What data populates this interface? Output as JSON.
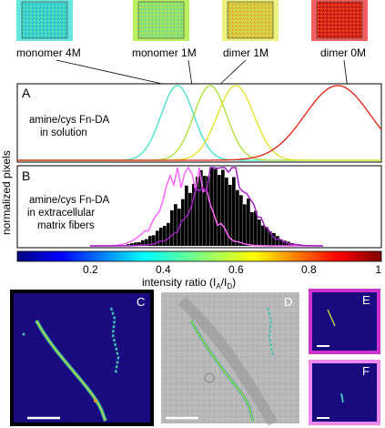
{
  "thumbnails": [
    {
      "label": "monomer 4M",
      "border": "#66e8e0",
      "fill": "#3dd6c8"
    },
    {
      "label": "monomer 1M",
      "border": "#b8f060",
      "fill": "#7fdc6a"
    },
    {
      "label": "dimer 1M",
      "border": "#eef080",
      "fill": "#d9d23a"
    },
    {
      "label": "dimer 0M",
      "border": "#f06060",
      "fill": "#d8201a"
    }
  ],
  "panels": {
    "A": {
      "letter": "A",
      "text_lines": [
        "amine/cys Fn-DA",
        "in solution"
      ]
    },
    "B": {
      "letter": "B",
      "text_lines": [
        "amine/cys Fn-DA",
        "in extracellular",
        "matrix fibers"
      ]
    },
    "C": {
      "letter": "C"
    },
    "D": {
      "letter": "D"
    },
    "E": {
      "letter": "E"
    },
    "F": {
      "letter": "F"
    }
  },
  "ylabel": "normalized pixels",
  "colorbar": {
    "ticks": [
      "0.2",
      "0.4",
      "0.6",
      "0.8",
      "1"
    ],
    "tick_values": [
      0.2,
      0.4,
      0.6,
      0.8,
      1.0
    ],
    "range": [
      0.0,
      1.0
    ],
    "label": "intensity ratio (I",
    "label_sub_a": "A",
    "label_mid": "/I",
    "label_sub_d": "D",
    "label_end": ")"
  },
  "chart_data": [
    {
      "type": "line",
      "panel": "A",
      "xlim": [
        0.0,
        1.0
      ],
      "series": [
        {
          "color": "#40e0d0",
          "peak": 0.44,
          "width": 0.045
        },
        {
          "color": "#a8e030",
          "peak": 0.53,
          "width": 0.045
        },
        {
          "color": "#e8e020",
          "peak": 0.6,
          "width": 0.05
        },
        {
          "color": "#e02010",
          "peak": 0.88,
          "width": 0.09
        }
      ]
    },
    {
      "type": "bar",
      "panel": "B",
      "xlim": [
        0.0,
        1.0
      ],
      "histogram": {
        "color": "#000000",
        "peak": 0.54,
        "width": 0.085
      },
      "series": [
        {
          "color": "#ff66ff",
          "peak": 0.46,
          "width": 0.06
        },
        {
          "color": "#a020c0",
          "peak": 0.56,
          "width": 0.07
        }
      ]
    }
  ],
  "colors": {
    "panelC_border": "#000000",
    "panelD_border": "#ffffff",
    "panelE_border": "#cc33cc",
    "panelF_border": "#ee88ee",
    "image_background": "#1a0a80"
  }
}
